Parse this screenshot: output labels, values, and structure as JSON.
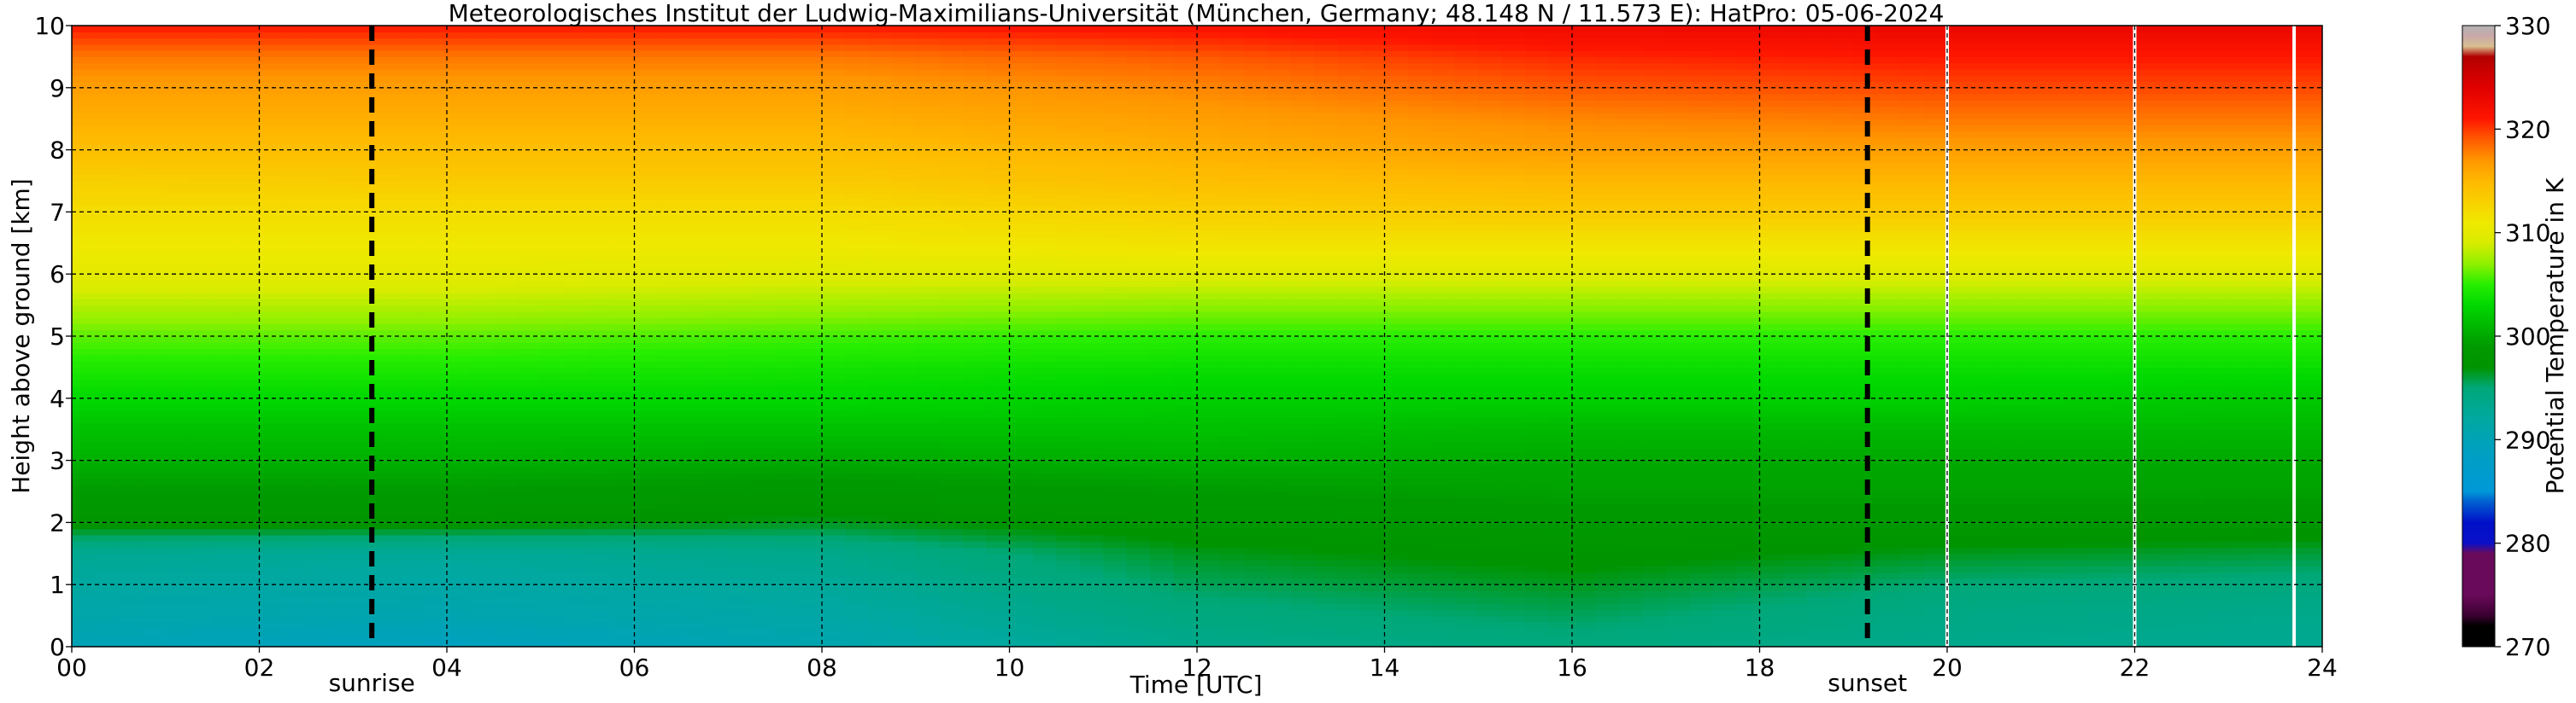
{
  "chart_data": {
    "type": "heatmap",
    "title": "Meteorologisches Institut der Ludwig-Maximilians-Universität (München, Germany; 48.148 N / 11.573 E):    HatPro: 05-06-2024",
    "xlabel": "Time [UTC]",
    "ylabel": "Height above ground [km]",
    "xlim": [
      0,
      24
    ],
    "ylim": [
      0,
      10
    ],
    "x_ticks": [
      "00",
      "02",
      "04",
      "06",
      "08",
      "10",
      "12",
      "14",
      "16",
      "18",
      "20",
      "22",
      "24"
    ],
    "y_ticks": [
      "0",
      "1",
      "2",
      "3",
      "4",
      "5",
      "6",
      "7",
      "8",
      "9",
      "10"
    ],
    "grid": true,
    "colorbar": {
      "label": "Potential Temperature in K",
      "range": [
        270,
        330
      ],
      "ticks": [
        "270",
        "280",
        "290",
        "300",
        "310",
        "320",
        "330"
      ],
      "stops": [
        {
          "value": 270,
          "color": "#000000"
        },
        {
          "value": 272,
          "color": "#000000"
        },
        {
          "value": 273,
          "color": "#3a0030"
        },
        {
          "value": 275,
          "color": "#6a0a5a"
        },
        {
          "value": 279,
          "color": "#6a0a5a"
        },
        {
          "value": 280,
          "color": "#0a10c8"
        },
        {
          "value": 282,
          "color": "#0010c8"
        },
        {
          "value": 284,
          "color": "#0060d0"
        },
        {
          "value": 285,
          "color": "#0098d8"
        },
        {
          "value": 289,
          "color": "#00a0c0"
        },
        {
          "value": 292,
          "color": "#00a8a0"
        },
        {
          "value": 295,
          "color": "#00a878"
        },
        {
          "value": 297,
          "color": "#009400"
        },
        {
          "value": 299,
          "color": "#009a00"
        },
        {
          "value": 301,
          "color": "#00b800"
        },
        {
          "value": 303,
          "color": "#00d800"
        },
        {
          "value": 305,
          "color": "#28ee00"
        },
        {
          "value": 307,
          "color": "#90f000"
        },
        {
          "value": 309,
          "color": "#d8ec00"
        },
        {
          "value": 311,
          "color": "#f0e800"
        },
        {
          "value": 313,
          "color": "#f8d000"
        },
        {
          "value": 315,
          "color": "#ffb800"
        },
        {
          "value": 317,
          "color": "#ff9600"
        },
        {
          "value": 319,
          "color": "#ff5a00"
        },
        {
          "value": 321,
          "color": "#ff1600"
        },
        {
          "value": 324,
          "color": "#e00000"
        },
        {
          "value": 326,
          "color": "#c40000"
        },
        {
          "value": 327,
          "color": "#b00000"
        },
        {
          "value": 328,
          "color": "#d8c090"
        },
        {
          "value": 329,
          "color": "#c8a8a8"
        },
        {
          "value": 330,
          "color": "#b4b4b4"
        }
      ]
    },
    "profile": {
      "comment_free_heights_km": [
        0,
        0.5,
        1.0,
        1.5,
        2.0,
        2.5,
        3.0,
        3.5,
        4.0,
        4.5,
        5.0,
        5.5,
        6.0,
        6.5,
        7.0,
        7.5,
        8.0,
        8.5,
        9.0,
        9.5,
        10.0
      ],
      "times_h": [
        0,
        4,
        8,
        12,
        16,
        20,
        24
      ],
      "theta_K": [
        [
          290.0,
          289.0,
          290.5,
          293.5,
          294.5,
          293.5,
          293.0
        ],
        [
          291.0,
          290.5,
          291.5,
          294.5,
          295.5,
          294.0,
          293.5
        ],
        [
          292.0,
          291.5,
          292.5,
          295.5,
          296.5,
          295.0,
          294.5
        ],
        [
          293.0,
          292.5,
          293.5,
          296.5,
          297.5,
          296.5,
          296.0
        ],
        [
          297.5,
          297.5,
          296.5,
          298.0,
          298.5,
          298.5,
          298.0
        ],
        [
          299.0,
          299.0,
          298.5,
          299.0,
          299.5,
          299.5,
          299.5
        ],
        [
          300.5,
          300.5,
          300.0,
          300.5,
          300.0,
          300.0,
          300.0
        ],
        [
          301.5,
          301.5,
          301.5,
          301.5,
          301.0,
          301.0,
          301.0
        ],
        [
          303.0,
          303.0,
          303.0,
          302.5,
          302.5,
          302.5,
          302.0
        ],
        [
          304.5,
          304.5,
          304.0,
          303.5,
          303.5,
          303.5,
          303.5
        ],
        [
          306.0,
          306.0,
          305.5,
          305.0,
          305.0,
          305.0,
          305.0
        ],
        [
          308.0,
          308.0,
          307.5,
          307.0,
          307.0,
          307.0,
          307.0
        ],
        [
          310.0,
          310.0,
          309.5,
          309.5,
          309.5,
          309.5,
          309.5
        ],
        [
          311.0,
          311.0,
          311.0,
          311.5,
          311.5,
          311.5,
          311.5
        ],
        [
          312.0,
          312.0,
          312.0,
          313.0,
          313.5,
          313.5,
          313.5
        ],
        [
          313.0,
          313.5,
          313.5,
          314.5,
          315.0,
          315.0,
          315.0
        ],
        [
          314.5,
          314.5,
          314.5,
          315.5,
          316.5,
          316.5,
          316.5
        ],
        [
          315.5,
          315.5,
          315.5,
          316.5,
          317.5,
          318.0,
          318.0
        ],
        [
          316.5,
          316.5,
          316.5,
          317.5,
          319.0,
          319.5,
          319.5
        ],
        [
          318.0,
          318.0,
          318.0,
          319.0,
          320.5,
          321.0,
          321.0
        ],
        [
          321.0,
          321.0,
          321.0,
          321.5,
          322.5,
          323.0,
          323.0
        ]
      ]
    },
    "markers": [
      {
        "label": "sunrise",
        "x": 3.2
      },
      {
        "label": "sunset",
        "x": 19.15
      }
    ],
    "gaps_x": [
      20.0,
      22.0,
      23.7
    ]
  }
}
